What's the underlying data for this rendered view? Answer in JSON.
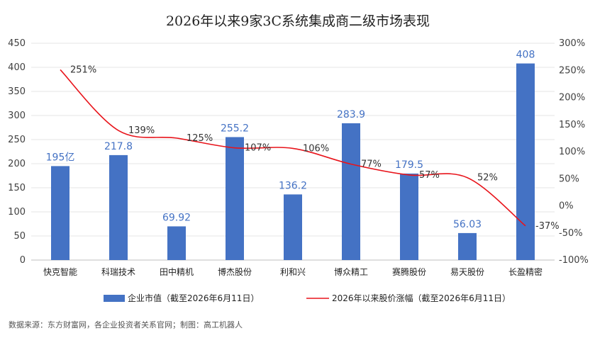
{
  "chart_data": {
    "type": "bar",
    "title": "2026年以来9家3C系统集成商二级市场表现",
    "categories": [
      "快克智能",
      "科瑞技术",
      "田中精机",
      "博杰股份",
      "利和兴",
      "博众精工",
      "赛腾股份",
      "易天股份",
      "长盈精密"
    ],
    "series": [
      {
        "name": "企业市值（截至2026年6月11日）",
        "type": "bar",
        "axis": "left",
        "values": [
          195,
          217.8,
          69.92,
          255.2,
          136.2,
          283.9,
          179.5,
          56.03,
          408
        ],
        "labels": [
          "195亿",
          "217.8",
          "69.92",
          "255.2",
          "136.2",
          "283.9",
          "179.5",
          "56.03",
          "408"
        ],
        "color": "#4472C4"
      },
      {
        "name": "2026年以来股价涨幅（截至2026年6月11日）",
        "type": "line",
        "axis": "right",
        "values": [
          251,
          139,
          125,
          107,
          106,
          77,
          57,
          52,
          -37
        ],
        "labels": [
          "251%",
          "139%",
          "125%",
          "107%",
          "106%",
          "77%",
          "57%",
          "52%",
          "-37%"
        ],
        "color": "#E8141B"
      }
    ],
    "y_left": {
      "min": 0,
      "max": 450,
      "step": 50,
      "ticks": [
        "0",
        "50",
        "100",
        "150",
        "200",
        "250",
        "300",
        "350",
        "400",
        "450"
      ]
    },
    "y_right": {
      "min": -100,
      "max": 300,
      "step": 50,
      "ticks": [
        "-100%",
        "-50%",
        "0%",
        "50%",
        "100%",
        "150%",
        "200%",
        "250%",
        "300%"
      ]
    },
    "grid": true,
    "legend_position": "bottom"
  },
  "source_note": "数据来源：东方财富网，各企业投资者关系官网；制图：高工机器人"
}
